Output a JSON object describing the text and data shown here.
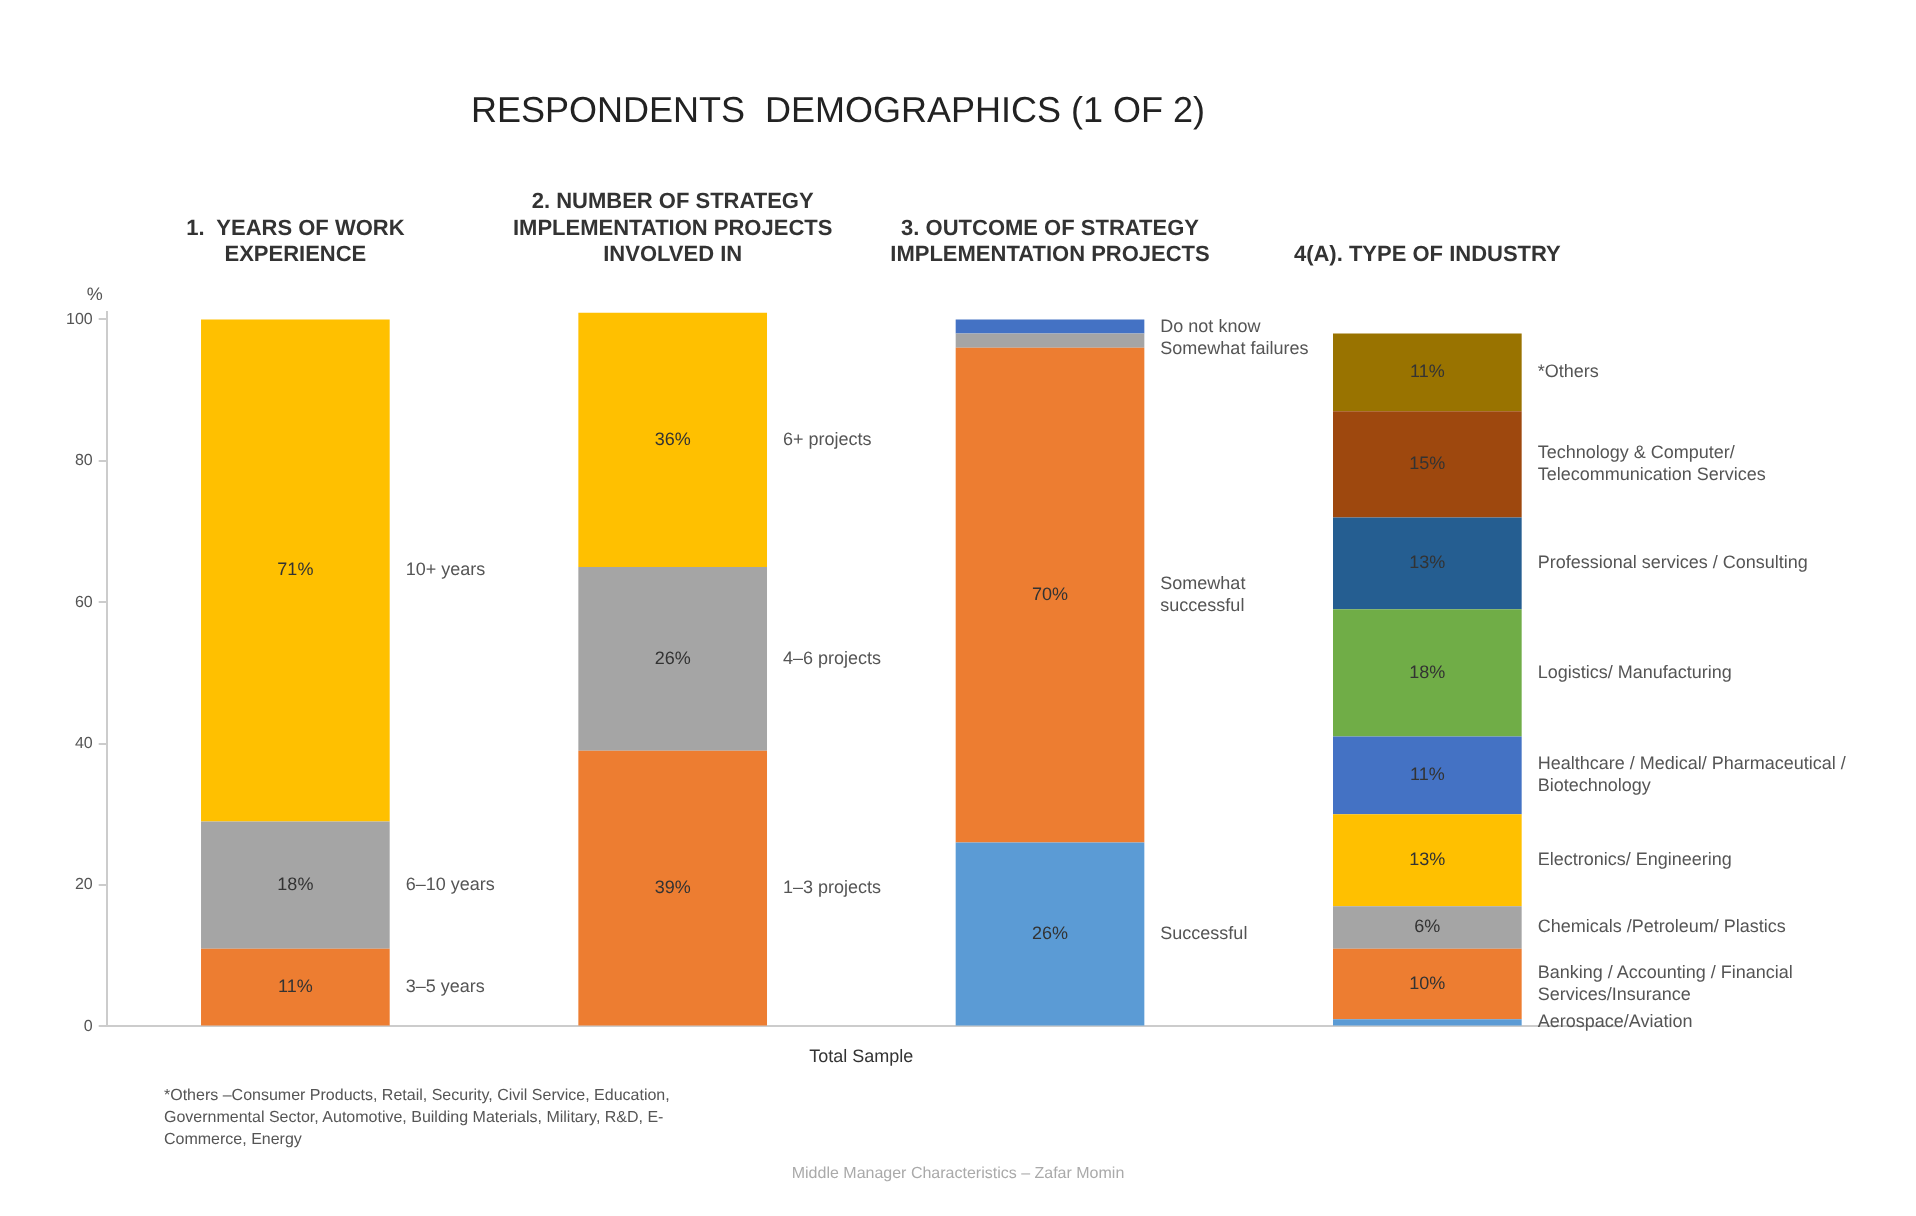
{
  "chart_data": {
    "type": "bar",
    "stacked": true,
    "title": "RESPONDENTS  DEMOGRAPHICS (1 OF 2)",
    "xlabel": "Total Sample",
    "ylabel": "%",
    "categories": [
      "1.  YEARS OF WORK EXPERIENCE",
      "2. NUMBER OF STRATEGY IMPLEMENTATION PROJECTS INVOLVED IN",
      "3. OUTCOME OF STRATEGY IMPLEMENTATION PROJECTS",
      "4(A). TYPE OF INDUSTRY"
    ],
    "ylim": [
      0,
      101
    ],
    "yticks": [
      0,
      20,
      40,
      60,
      80,
      100
    ],
    "series": [
      {
        "name": "3–5 years",
        "color": "#ed7d31",
        "values": [
          11,
          null,
          null,
          null
        ],
        "value_labels": [
          "11%",
          null,
          null,
          null
        ]
      },
      {
        "name": "6–10 years",
        "color": "#a5a5a5",
        "values": [
          18,
          null,
          null,
          null
        ],
        "value_labels": [
          "18%",
          null,
          null,
          null
        ]
      },
      {
        "name": "10+ years",
        "color": "#ffc000",
        "values": [
          71,
          null,
          null,
          null
        ],
        "value_labels": [
          "71%",
          null,
          null,
          null
        ]
      },
      {
        "name": "1–3 projects",
        "color": "#ed7d31",
        "values": [
          null,
          39,
          null,
          null
        ],
        "value_labels": [
          null,
          "39%",
          null,
          null
        ]
      },
      {
        "name": "4–6 projects",
        "color": "#a5a5a5",
        "values": [
          null,
          26,
          null,
          null
        ],
        "value_labels": [
          null,
          "26%",
          null,
          null
        ]
      },
      {
        "name": "6+ projects",
        "color": "#ffc000",
        "values": [
          null,
          36,
          null,
          null
        ],
        "value_labels": [
          null,
          "36%",
          null,
          null
        ]
      },
      {
        "name": "Successful",
        "color": "#5b9bd5",
        "values": [
          null,
          null,
          26,
          null
        ],
        "value_labels": [
          null,
          null,
          "26%",
          null
        ]
      },
      {
        "name": "Somewhat successful",
        "color": "#ed7d31",
        "values": [
          null,
          null,
          70,
          null
        ],
        "value_labels": [
          null,
          null,
          "70%",
          null
        ]
      },
      {
        "name": "Somewhat failures",
        "color": "#a5a5a5",
        "values": [
          null,
          null,
          2,
          null
        ],
        "value_labels": [
          null,
          null,
          null,
          null
        ]
      },
      {
        "name": "Do not know",
        "color": "#4472c4",
        "values": [
          null,
          null,
          2,
          null
        ],
        "value_labels": [
          null,
          null,
          null,
          null
        ]
      },
      {
        "name": "Aerospace/Aviation",
        "color": "#5b9bd5",
        "values": [
          null,
          null,
          null,
          1
        ],
        "value_labels": [
          null,
          null,
          null,
          null
        ]
      },
      {
        "name": "Banking / Accounting / Financial Services/Insurance",
        "color": "#ed7d31",
        "values": [
          null,
          null,
          null,
          10
        ],
        "value_labels": [
          null,
          null,
          null,
          "10%"
        ]
      },
      {
        "name": "Chemicals /Petroleum/ Plastics",
        "color": "#a5a5a5",
        "values": [
          null,
          null,
          null,
          6
        ],
        "value_labels": [
          null,
          null,
          null,
          "6%"
        ]
      },
      {
        "name": "Electronics/ Engineering",
        "color": "#ffc000",
        "values": [
          null,
          null,
          null,
          13
        ],
        "value_labels": [
          null,
          null,
          null,
          "13%"
        ]
      },
      {
        "name": "Healthcare / Medical/ Pharmaceutical / Biotechnology",
        "color": "#4472c4",
        "values": [
          null,
          null,
          null,
          11
        ],
        "value_labels": [
          null,
          null,
          null,
          "11%"
        ]
      },
      {
        "name": "Logistics/ Manufacturing",
        "color": "#70ad47",
        "values": [
          null,
          null,
          null,
          18
        ],
        "value_labels": [
          null,
          null,
          null,
          "18%"
        ]
      },
      {
        "name": "Professional services / Consulting",
        "color": "#255e91",
        "values": [
          null,
          null,
          null,
          13
        ],
        "value_labels": [
          null,
          null,
          null,
          "13%"
        ]
      },
      {
        "name": "Technology & Computer/ Telecommunication Services",
        "color": "#9e480e",
        "values": [
          null,
          null,
          null,
          15
        ],
        "value_labels": [
          null,
          null,
          null,
          "15%"
        ]
      },
      {
        "name": "*Others",
        "color": "#997300",
        "values": [
          null,
          null,
          null,
          11
        ],
        "value_labels": [
          null,
          null,
          null,
          "11%"
        ]
      }
    ],
    "annotations": [
      "*Others –Consumer Products, Retail, Security, Civil Service, Education, Governmental Sector, Automotive, Building Materials, Military, R&D, E-Commerce, Energy",
      "Middle Manager Characteristics – Zafar Momin"
    ]
  }
}
